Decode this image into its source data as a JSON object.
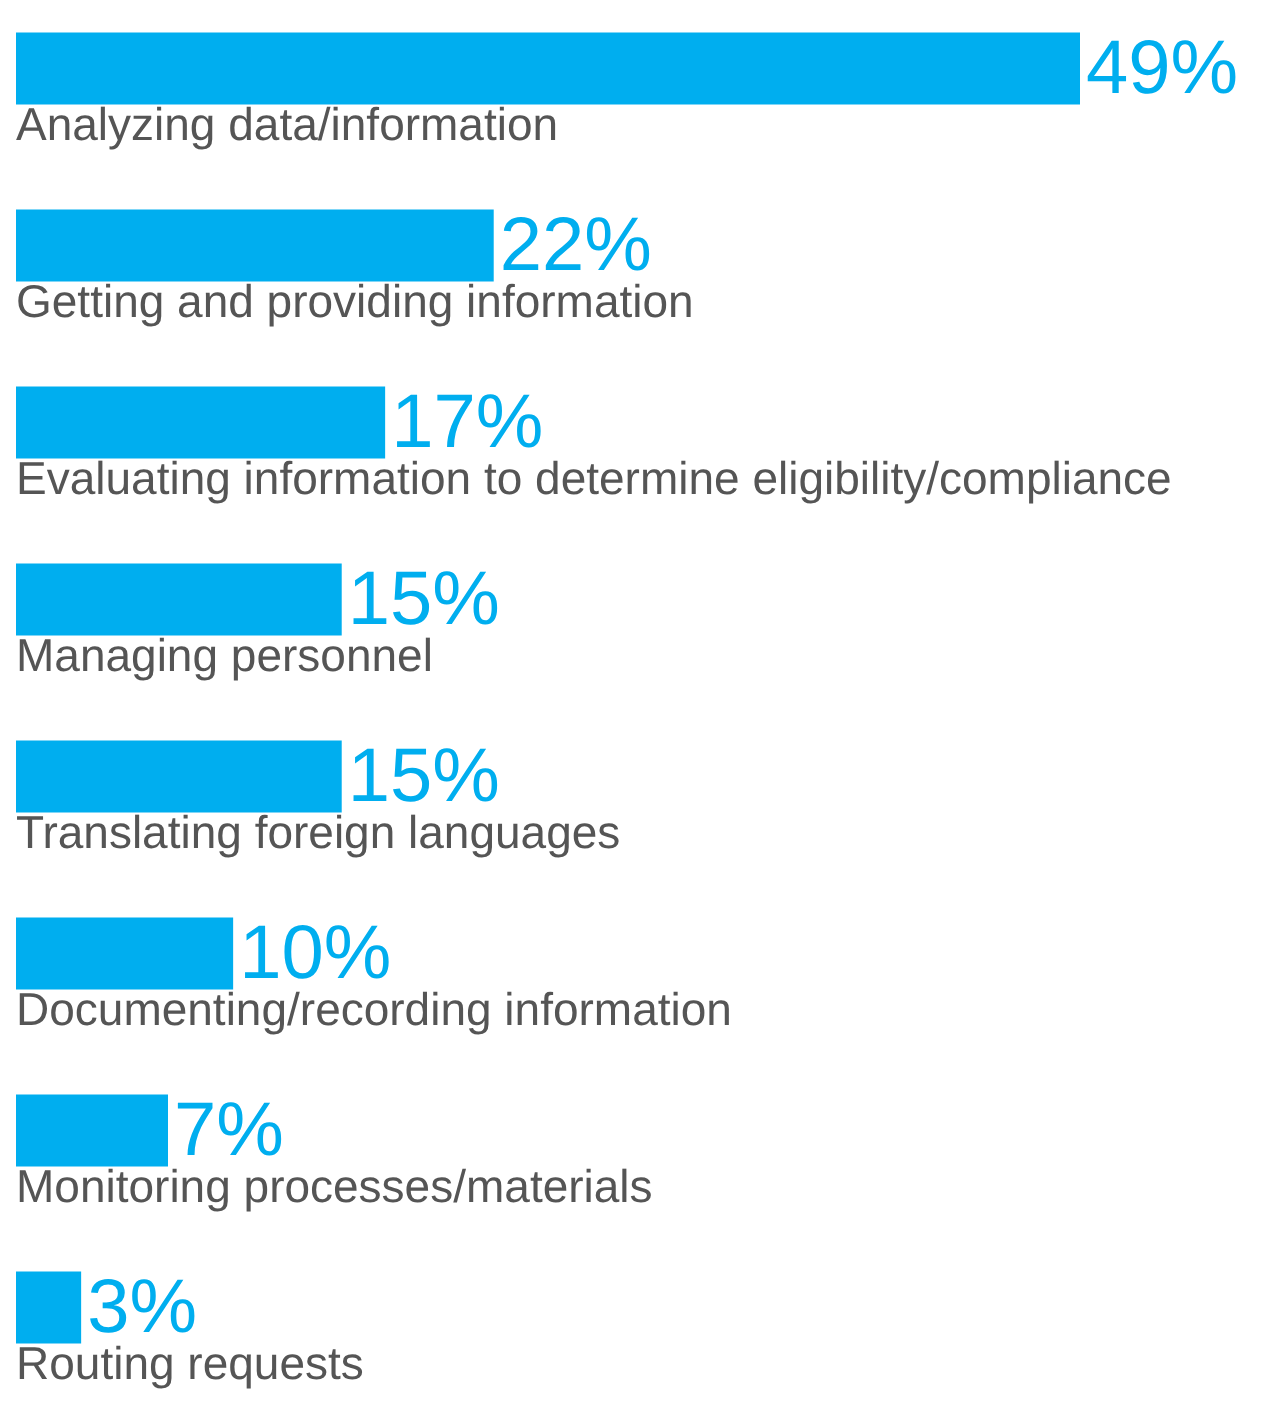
{
  "chart_data": {
    "type": "bar",
    "orientation": "horizontal",
    "color": "#00aeef",
    "categories": [
      "Analyzing data/information",
      "Getting and providing information",
      "Evaluating information to determine eligibility/compliance",
      "Managing personnel",
      "Translating foreign languages",
      "Documenting/recording information",
      "Monitoring processes/materials",
      "Routing requests"
    ],
    "values": [
      49,
      22,
      17,
      15,
      15,
      10,
      7,
      3
    ],
    "value_labels": [
      "49%",
      "22%",
      "17%",
      "15%",
      "15%",
      "10%",
      "7%",
      "3%"
    ]
  }
}
